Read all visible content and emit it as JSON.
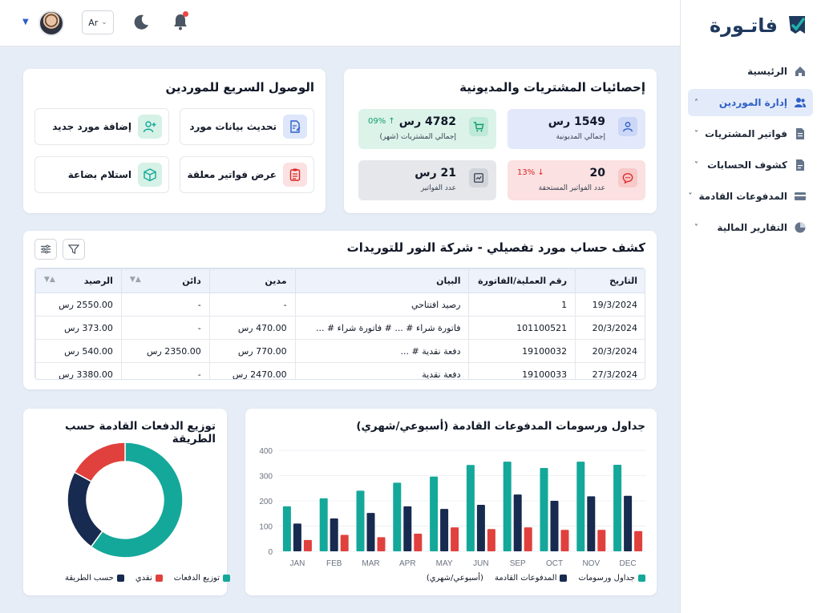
{
  "logo": {
    "text": "فاتـورة"
  },
  "nav": [
    {
      "label": "الرئيسية",
      "icon": "home-icon",
      "chevron": ""
    },
    {
      "label": "إدارة الموردين",
      "icon": "users-icon",
      "chevron": "˄",
      "active": true
    },
    {
      "label": "فواتير المشتريات",
      "icon": "invoice-icon",
      "chevron": "˅"
    },
    {
      "label": "كشوف الحسابات",
      "icon": "document-icon",
      "chevron": "˅"
    },
    {
      "label": "المدفوعات القادمة",
      "icon": "card-icon",
      "chevron": "˅"
    },
    {
      "label": "التقارير المالية",
      "icon": "pie-chart-icon",
      "chevron": "˅"
    }
  ],
  "topbar": {
    "lang": "Ar"
  },
  "stats": {
    "title": "إحصائيات المشتريات والمديونية",
    "items": [
      {
        "value": "1549 رس",
        "label": "إجمالي المديونية",
        "pct": ""
      },
      {
        "value": "4782 رس",
        "label": "إجمالي المشتريات (شهر)",
        "pct": "09%"
      },
      {
        "value": "20",
        "label": "عدد الفواتير المستحقة",
        "pct": "13%"
      },
      {
        "value": "21 رس",
        "label": "عدد الفواتير",
        "pct": ""
      }
    ]
  },
  "quick": {
    "title": "الوصول السريع للموردين",
    "items": [
      {
        "label": "تحديث بيانات مورد"
      },
      {
        "label": "إضافة مورد جديد"
      },
      {
        "label": "عرض فواتير معلقة"
      },
      {
        "label": "استلام بضاعة"
      }
    ]
  },
  "statement": {
    "title": "كشف حساب مورد تفصيلي - شركة النور للتوريدات",
    "columns": [
      "التاريخ",
      "رقم العملية/الفاتورة",
      "البيان",
      "مدين",
      "دائن",
      "الرصيد"
    ],
    "rows": [
      [
        "19/3/2024",
        "1",
        "رصيد افتتاحي",
        "-",
        "-",
        "2550.00 رس"
      ],
      [
        "20/3/2024",
        "101100521",
        "فاتورة شراء # ... # فاتورة شراء # ...",
        "470.00 رس",
        "-",
        "373.00 رس"
      ],
      [
        "20/3/2024",
        "19100032",
        "دفعة نقدية # ...",
        "770.00 رس",
        "2350.00 رس",
        "540.00 رس"
      ],
      [
        "27/3/2024",
        "19100033",
        "دفعة نقدية",
        "2470.00 رس",
        "-",
        "3380.00 رس"
      ]
    ]
  },
  "bar_card": {
    "title": "جداول ورسومات المدفوعات القادمة (أسبوعي/شهري)"
  },
  "donut_card": {
    "title": "توزيع الدفعات القادمة حسب الطريقة"
  },
  "chart_data": [
    {
      "type": "bar",
      "title": "جداول ورسومات المدفوعات القادمة (أسبوعي/شهري)",
      "categories": [
        "JAN",
        "FEB",
        "MAR",
        "APR",
        "MAY",
        "JUN",
        "SEP",
        "OCT",
        "NOV",
        "DEC"
      ],
      "ylim": [
        0,
        400
      ],
      "yticks": [
        0,
        100,
        200,
        300,
        400
      ],
      "series": [
        {
          "name": "جداول ورسومات",
          "color": "#14a89a",
          "values": [
            178,
            210,
            240,
            272,
            296,
            342,
            355,
            330,
            355,
            343
          ]
        },
        {
          "name": "المدفوعات القادمة",
          "color": "#172a4f",
          "values": [
            110,
            130,
            152,
            178,
            168,
            184,
            225,
            200,
            218,
            220
          ]
        },
        {
          "name": "(أسبوعي/شهري)",
          "color": "#e0413d",
          "values": [
            45,
            65,
            56,
            70,
            95,
            88,
            95,
            85,
            85,
            80
          ]
        }
      ]
    },
    {
      "type": "pie",
      "title": "توزيع الدفعات القادمة حسب الطريقة",
      "labels": [
        "توزيع الدفعات",
        "نقدي",
        "حسب الطريقة"
      ],
      "values": [
        60,
        23,
        17
      ],
      "colors": [
        "#14a89a",
        "#172a4f",
        "#e0413d"
      ]
    }
  ]
}
